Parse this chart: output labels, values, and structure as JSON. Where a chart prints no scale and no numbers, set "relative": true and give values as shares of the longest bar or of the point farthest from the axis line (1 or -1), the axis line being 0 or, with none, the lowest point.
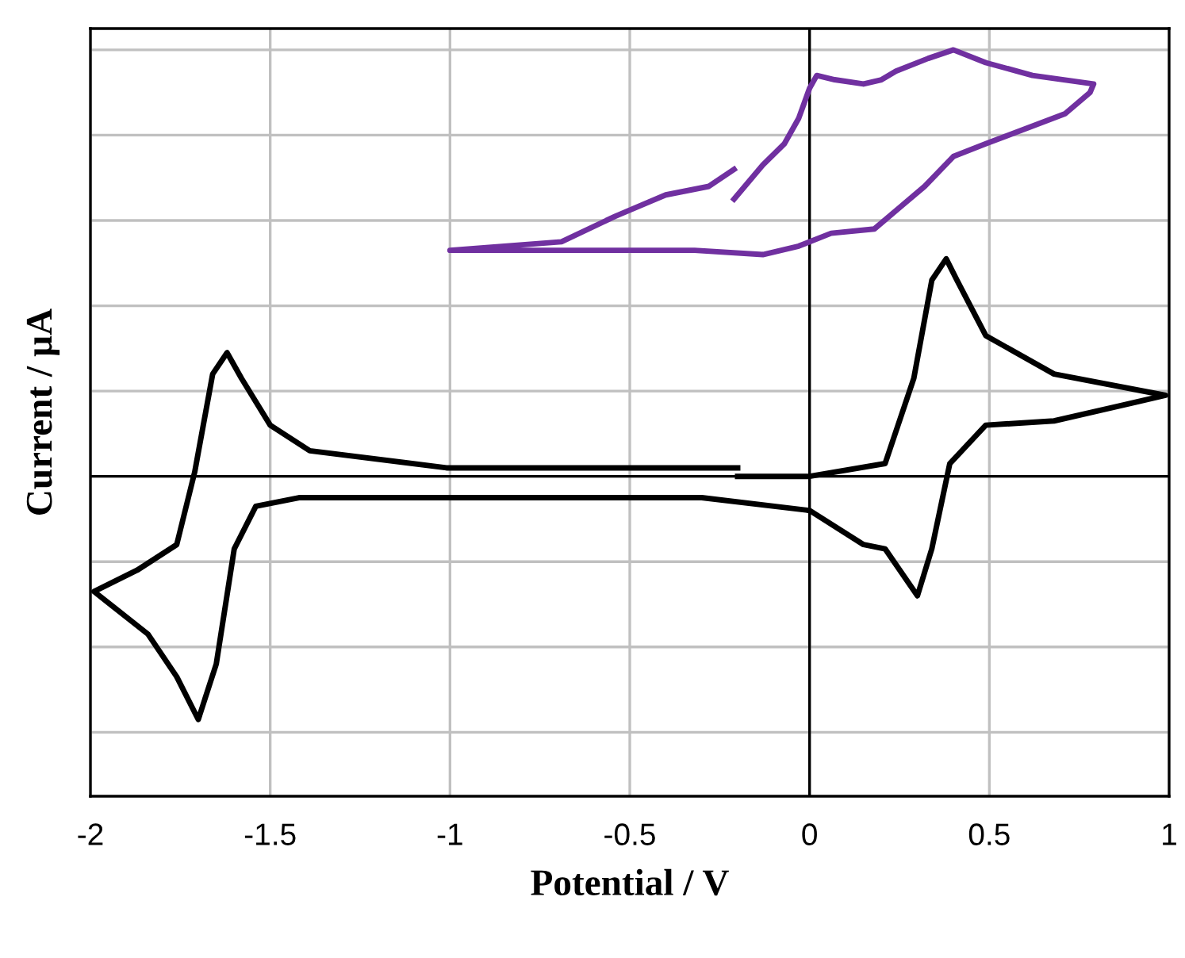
{
  "chart_data": {
    "type": "line",
    "xlabel": "Potential / V",
    "ylabel": "Current / µA",
    "relative": true,
    "xlim": [
      -2,
      1
    ],
    "xticks": [
      -2,
      -1.5,
      -1,
      -0.5,
      0,
      0.5,
      1
    ],
    "grid": true,
    "legend": false,
    "marker": "none",
    "line_style": "solid",
    "series": [
      {
        "color": "#000000",
        "x": [
          -0.2,
          -1.01,
          -1.39,
          -1.5,
          -1.58,
          -1.62,
          -1.66,
          -1.71,
          -1.76,
          -1.87,
          -1.99,
          -1.84,
          -1.76,
          -1.7,
          -1.65,
          -1.6,
          -1.54,
          -1.42,
          -0.3,
          0.0,
          0.15,
          0.21,
          0.3,
          0.34,
          0.39,
          0.49,
          0.68,
          0.99,
          0.68,
          0.49,
          0.41,
          0.38,
          0.34,
          0.29,
          0.21,
          0.0,
          -0.2
        ],
        "values": [
          0.02,
          0.02,
          0.06,
          0.12,
          0.23,
          0.29,
          0.24,
          0.01,
          -0.16,
          -0.22,
          -0.27,
          -0.37,
          -0.47,
          -0.57,
          -0.44,
          -0.17,
          -0.07,
          -0.05,
          -0.05,
          -0.08,
          -0.16,
          -0.17,
          -0.28,
          -0.17,
          0.03,
          0.12,
          0.13,
          0.19,
          0.24,
          0.33,
          0.46,
          0.51,
          0.46,
          0.23,
          0.03,
          0.0,
          0.0
        ]
      },
      {
        "color": "#7030a0",
        "x": [
          -0.21,
          -0.13,
          -0.07,
          -0.03,
          0.0,
          0.02,
          0.07,
          0.15,
          0.2,
          0.24,
          0.33,
          0.4,
          0.49,
          0.62,
          0.79,
          0.78,
          0.71,
          0.49,
          0.4,
          0.32,
          0.25,
          0.18,
          0.06,
          -0.03,
          -0.13,
          -0.32,
          -0.69,
          -1.0,
          -0.69,
          -0.54,
          -0.4,
          -0.28,
          -0.21
        ],
        "values": [
          0.65,
          0.73,
          0.78,
          0.84,
          0.91,
          0.94,
          0.93,
          0.92,
          0.93,
          0.95,
          0.98,
          1.0,
          0.97,
          0.94,
          0.92,
          0.9,
          0.85,
          0.78,
          0.75,
          0.68,
          0.63,
          0.58,
          0.57,
          0.54,
          0.52,
          0.53,
          0.53,
          0.53,
          0.55,
          0.61,
          0.66,
          0.68,
          0.72
        ]
      }
    ]
  }
}
